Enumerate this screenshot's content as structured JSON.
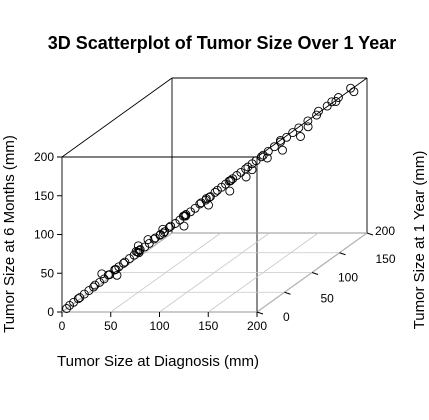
{
  "chart_data": {
    "type": "scatter",
    "title": "3D Scatterplot of Tumor Size Over 1 Year",
    "xlabel": "Tumor Size at Diagnosis (mm)",
    "ylabel": "Tumor Size at 1 Year (mm)",
    "zlabel": "Tumor Size at 6 Months (mm)",
    "xlim": [
      0,
      200
    ],
    "ylim": [
      0,
      200
    ],
    "zlim": [
      0,
      200
    ],
    "x_ticks": [
      "0",
      "50",
      "100",
      "150",
      "200"
    ],
    "y_ticks": [
      "0",
      "50",
      "100",
      "150",
      "200"
    ],
    "z_ticks": [
      "0",
      "50",
      "100",
      "150",
      "200"
    ],
    "grid": "floor",
    "box": true,
    "point_style": "open-circle",
    "point_color": "#000000",
    "series": [
      {
        "points": [
          [
            3,
            3,
            3
          ],
          [
            5,
            5,
            6
          ],
          [
            8,
            7,
            9
          ],
          [
            10,
            12,
            11
          ],
          [
            12,
            11,
            13
          ],
          [
            15,
            14,
            16
          ],
          [
            18,
            17,
            19
          ],
          [
            20,
            22,
            21
          ],
          [
            22,
            21,
            24
          ],
          [
            25,
            24,
            26
          ],
          [
            28,
            27,
            29
          ],
          [
            30,
            31,
            32
          ],
          [
            32,
            30,
            33
          ],
          [
            35,
            34,
            37
          ],
          [
            38,
            36,
            40
          ],
          [
            40,
            41,
            42
          ],
          [
            42,
            40,
            44
          ],
          [
            45,
            43,
            47
          ],
          [
            48,
            46,
            50
          ],
          [
            50,
            52,
            53
          ],
          [
            52,
            50,
            55
          ],
          [
            55,
            53,
            57
          ],
          [
            58,
            56,
            60
          ],
          [
            60,
            61,
            63
          ],
          [
            62,
            60,
            65
          ],
          [
            65,
            63,
            67
          ],
          [
            68,
            66,
            70
          ],
          [
            70,
            71,
            73
          ],
          [
            72,
            70,
            75
          ],
          [
            75,
            73,
            77
          ],
          [
            78,
            76,
            80
          ],
          [
            80,
            81,
            83
          ],
          [
            82,
            80,
            85
          ],
          [
            85,
            83,
            87
          ],
          [
            88,
            86,
            90
          ],
          [
            90,
            91,
            93
          ],
          [
            92,
            90,
            95
          ],
          [
            95,
            93,
            97
          ],
          [
            98,
            96,
            100
          ],
          [
            100,
            101,
            103
          ],
          [
            103,
            100,
            106
          ],
          [
            105,
            104,
            108
          ],
          [
            108,
            106,
            111
          ],
          [
            110,
            112,
            113
          ],
          [
            113,
            110,
            116
          ],
          [
            115,
            114,
            118
          ],
          [
            118,
            116,
            121
          ],
          [
            120,
            121,
            123
          ],
          [
            123,
            120,
            126
          ],
          [
            125,
            124,
            128
          ],
          [
            128,
            126,
            131
          ],
          [
            130,
            132,
            133
          ],
          [
            133,
            130,
            136
          ],
          [
            136,
            134,
            139
          ],
          [
            140,
            138,
            143
          ],
          [
            144,
            142,
            147
          ],
          [
            148,
            146,
            151
          ],
          [
            152,
            150,
            155
          ],
          [
            156,
            154,
            159
          ],
          [
            162,
            160,
            165
          ],
          [
            168,
            165,
            170
          ],
          [
            175,
            172,
            178
          ],
          [
            182,
            180,
            185
          ],
          [
            190,
            188,
            193
          ],
          [
            30,
            45,
            32
          ],
          [
            45,
            60,
            46
          ],
          [
            60,
            78,
            62
          ],
          [
            75,
            92,
            77
          ],
          [
            90,
            108,
            93
          ],
          [
            105,
            120,
            108
          ],
          [
            40,
            25,
            42
          ],
          [
            55,
            40,
            57
          ],
          [
            70,
            55,
            72
          ],
          [
            85,
            70,
            88
          ],
          [
            100,
            85,
            103
          ],
          [
            115,
            100,
            118
          ],
          [
            25,
            28,
            35
          ],
          [
            50,
            50,
            60
          ],
          [
            65,
            68,
            72
          ],
          [
            80,
            80,
            70
          ],
          [
            95,
            98,
            88
          ],
          [
            110,
            110,
            100
          ],
          [
            35,
            38,
            28
          ],
          [
            120,
            122,
            112
          ],
          [
            140,
            125,
            135
          ],
          [
            150,
            135,
            140
          ],
          [
            160,
            150,
            150
          ],
          [
            60,
            50,
            68
          ],
          [
            170,
            165,
            175
          ],
          [
            178,
            175,
            182
          ],
          [
            185,
            170,
            185
          ],
          [
            195,
            185,
            190
          ],
          [
            165,
            155,
            160
          ],
          [
            145,
            140,
            150
          ],
          [
            130,
            115,
            125
          ],
          [
            45,
            55,
            50
          ]
        ]
      }
    ]
  }
}
